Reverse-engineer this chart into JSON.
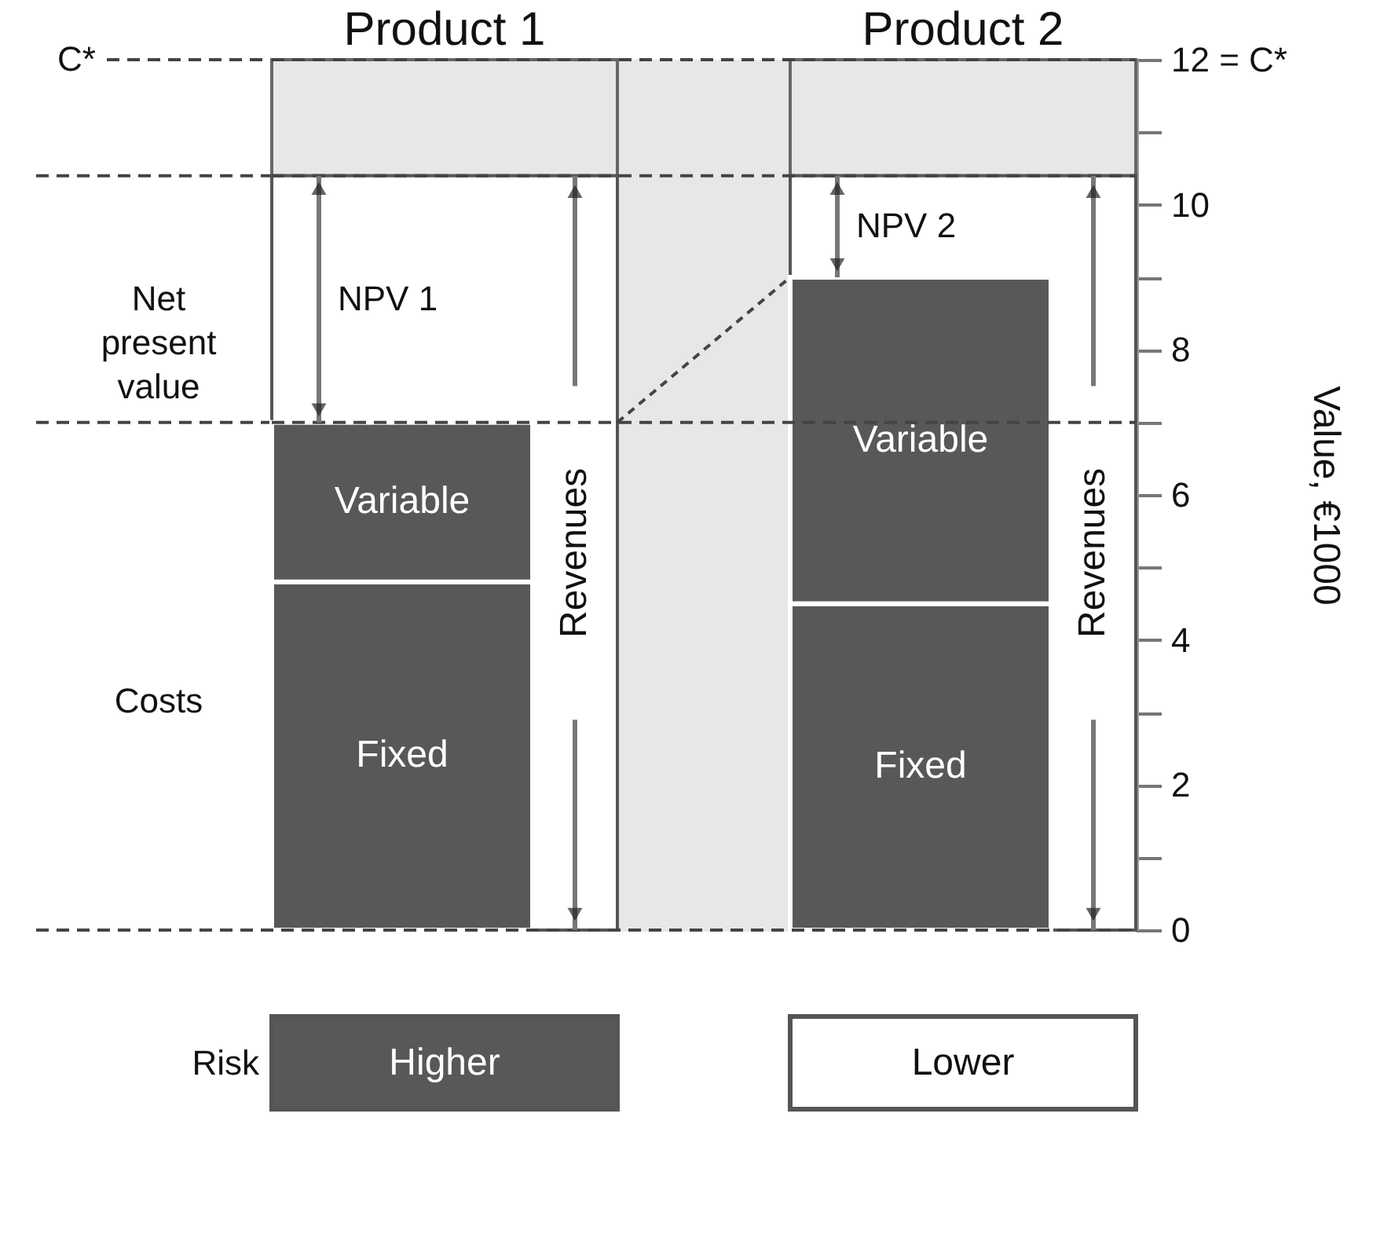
{
  "chart_data": {
    "type": "bar",
    "categories": [
      "Product 1",
      "Product 2"
    ],
    "series": [
      {
        "name": "Revenues",
        "color": "#ffffff",
        "values": [
          10.4,
          10.4
        ]
      },
      {
        "name": "Fixed",
        "color": "#58585a",
        "values": [
          4.8,
          4.5
        ],
        "base": [
          0,
          0
        ]
      },
      {
        "name": "Variable",
        "color": "#58585a",
        "values": [
          2.2,
          4.5
        ],
        "base": [
          4.8,
          4.5
        ]
      }
    ],
    "ylabel": "Value, €1000",
    "ylim": [
      0,
      12
    ],
    "yticks": [
      0,
      {
        "value": 1,
        "label": null
      },
      2,
      {
        "value": 3,
        "label": null
      },
      4,
      {
        "value": 5,
        "label": null
      },
      6,
      {
        "value": 7,
        "label": null
      },
      8,
      {
        "value": 9,
        "label": null
      },
      10,
      {
        "value": 11,
        "label": null
      },
      {
        "value": 12,
        "label": "12 = C*"
      }
    ],
    "ref_lines": [
      {
        "axis": "y",
        "value": 12,
        "label": "C*",
        "line_style": "dashed"
      },
      {
        "axis": "y",
        "value": 10.4,
        "line_style": "dashed"
      },
      {
        "axis": "y",
        "value": 7.0,
        "line_style": "dashed"
      }
    ],
    "annotations": [
      "Net present value",
      "Costs",
      "NPV 1",
      "NPV 2",
      "Risk",
      "Higher",
      "Lower"
    ],
    "grid": false
  }
}
